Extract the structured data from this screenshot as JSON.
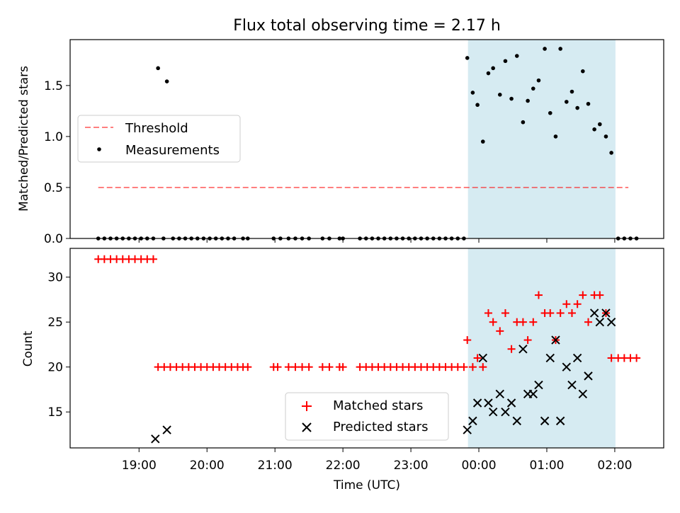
{
  "figure": {
    "title": "Flux total observing time = 2.17 h"
  },
  "chart_data": [
    {
      "type": "scatter",
      "title": "Flux total observing time = 2.17 h",
      "xlabel": "",
      "ylabel": "Matched/Predicted stars",
      "x_unit": "hours (UTC, after midnight > 24)",
      "xlim": [
        17.986,
        26.72
      ],
      "ylim": [
        0,
        1.95
      ],
      "yticks": [
        "0.0",
        "0.5",
        "1.0",
        "1.5"
      ],
      "grid": false,
      "legend_position": "left",
      "shaded_region": {
        "x": [
          23.84,
          26.01
        ],
        "color": "#add8e6"
      },
      "threshold": {
        "name": "Threshold",
        "y": 0.5,
        "x": [
          18.4,
          26.2
        ],
        "color": "#ff0000"
      },
      "series": [
        {
          "name": "Measurements",
          "marker": "dot",
          "color": "#000000",
          "points": [
            [
              18.4,
              0
            ],
            [
              18.49,
              0
            ],
            [
              18.58,
              0
            ],
            [
              18.67,
              0
            ],
            [
              18.76,
              0
            ],
            [
              18.85,
              0
            ],
            [
              18.94,
              0
            ],
            [
              19.03,
              0
            ],
            [
              19.12,
              0
            ],
            [
              19.21,
              0
            ],
            [
              19.28,
              1.67
            ],
            [
              19.41,
              1.54
            ],
            [
              19.36,
              0
            ],
            [
              19.5,
              0
            ],
            [
              19.59,
              0
            ],
            [
              19.68,
              0
            ],
            [
              19.77,
              0
            ],
            [
              19.86,
              0
            ],
            [
              19.95,
              0
            ],
            [
              20.04,
              0
            ],
            [
              20.13,
              0
            ],
            [
              20.22,
              0
            ],
            [
              20.31,
              0
            ],
            [
              20.4,
              0
            ],
            [
              20.53,
              0
            ],
            [
              20.6,
              0
            ],
            [
              20.98,
              0
            ],
            [
              21.08,
              0
            ],
            [
              21.2,
              0
            ],
            [
              21.3,
              0
            ],
            [
              21.4,
              0
            ],
            [
              21.5,
              0
            ],
            [
              21.7,
              0
            ],
            [
              21.8,
              0
            ],
            [
              21.95,
              0
            ],
            [
              22.0,
              0
            ],
            [
              22.25,
              0
            ],
            [
              22.34,
              0
            ],
            [
              22.43,
              0
            ],
            [
              22.52,
              0
            ],
            [
              22.61,
              0
            ],
            [
              22.7,
              0
            ],
            [
              22.79,
              0
            ],
            [
              22.88,
              0
            ],
            [
              22.97,
              0
            ],
            [
              23.06,
              0
            ],
            [
              23.15,
              0
            ],
            [
              23.24,
              0
            ],
            [
              23.33,
              0
            ],
            [
              23.42,
              0
            ],
            [
              23.51,
              0
            ],
            [
              23.6,
              0
            ],
            [
              23.69,
              0
            ],
            [
              23.78,
              0
            ],
            [
              23.83,
              1.77
            ],
            [
              23.91,
              1.43
            ],
            [
              23.98,
              1.31
            ],
            [
              24.06,
              0.95
            ],
            [
              24.14,
              1.62
            ],
            [
              24.21,
              1.67
            ],
            [
              24.31,
              1.41
            ],
            [
              24.39,
              1.74
            ],
            [
              24.48,
              1.37
            ],
            [
              24.56,
              1.79
            ],
            [
              24.65,
              1.14
            ],
            [
              24.72,
              1.35
            ],
            [
              24.8,
              1.47
            ],
            [
              24.88,
              1.55
            ],
            [
              24.97,
              1.86
            ],
            [
              25.05,
              1.23
            ],
            [
              25.13,
              1.0
            ],
            [
              25.2,
              1.86
            ],
            [
              25.29,
              1.34
            ],
            [
              25.37,
              1.44
            ],
            [
              25.45,
              1.28
            ],
            [
              25.53,
              1.64
            ],
            [
              25.61,
              1.32
            ],
            [
              25.7,
              1.07
            ],
            [
              25.78,
              1.12
            ],
            [
              25.87,
              1.0
            ],
            [
              25.95,
              0.84
            ],
            [
              26.05,
              0
            ],
            [
              26.14,
              0
            ],
            [
              26.23,
              0
            ],
            [
              26.32,
              0
            ]
          ]
        }
      ],
      "legend": [
        {
          "label": "Threshold",
          "kind": "dashed-line",
          "color": "#ff0000"
        },
        {
          "label": "Measurements",
          "kind": "dot",
          "color": "#000000"
        }
      ]
    },
    {
      "type": "scatter",
      "title": "",
      "xlabel": "Time (UTC)",
      "ylabel": "Count",
      "x_unit": "hours (UTC, after midnight > 24)",
      "xlim": [
        17.986,
        26.72
      ],
      "ylim": [
        11.0,
        33.2
      ],
      "xticks": [
        {
          "value": 19,
          "label": "19:00"
        },
        {
          "value": 20,
          "label": "20:00"
        },
        {
          "value": 21,
          "label": "21:00"
        },
        {
          "value": 22,
          "label": "22:00"
        },
        {
          "value": 23,
          "label": "23:00"
        },
        {
          "value": 24,
          "label": "00:00"
        },
        {
          "value": 25,
          "label": "01:00"
        },
        {
          "value": 26,
          "label": "02:00"
        }
      ],
      "yticks": [
        "15",
        "20",
        "25",
        "30"
      ],
      "grid": false,
      "legend_position": "bottom-center",
      "shaded_region": {
        "x": [
          23.84,
          26.01
        ],
        "color": "#add8e6"
      },
      "series": [
        {
          "name": "Matched stars",
          "marker": "plus",
          "color": "#ff0000",
          "points": [
            [
              18.4,
              32
            ],
            [
              18.49,
              32
            ],
            [
              18.58,
              32
            ],
            [
              18.67,
              32
            ],
            [
              18.76,
              32
            ],
            [
              18.85,
              32
            ],
            [
              18.94,
              32
            ],
            [
              19.03,
              32
            ],
            [
              19.12,
              32
            ],
            [
              19.21,
              32
            ],
            [
              19.28,
              20
            ],
            [
              19.37,
              20
            ],
            [
              19.46,
              20
            ],
            [
              19.55,
              20
            ],
            [
              19.64,
              20
            ],
            [
              19.73,
              20
            ],
            [
              19.82,
              20
            ],
            [
              19.91,
              20
            ],
            [
              20.0,
              20
            ],
            [
              20.09,
              20
            ],
            [
              20.18,
              20
            ],
            [
              20.27,
              20
            ],
            [
              20.36,
              20
            ],
            [
              20.45,
              20
            ],
            [
              20.53,
              20
            ],
            [
              20.6,
              20
            ],
            [
              20.98,
              20
            ],
            [
              21.04,
              20
            ],
            [
              21.2,
              20
            ],
            [
              21.3,
              20
            ],
            [
              21.4,
              20
            ],
            [
              21.5,
              20
            ],
            [
              21.7,
              20
            ],
            [
              21.8,
              20
            ],
            [
              21.95,
              20
            ],
            [
              22.0,
              20
            ],
            [
              22.25,
              20
            ],
            [
              22.34,
              20
            ],
            [
              22.43,
              20
            ],
            [
              22.52,
              20
            ],
            [
              22.61,
              20
            ],
            [
              22.7,
              20
            ],
            [
              22.79,
              20
            ],
            [
              22.88,
              20
            ],
            [
              22.97,
              20
            ],
            [
              23.06,
              20
            ],
            [
              23.15,
              20
            ],
            [
              23.24,
              20
            ],
            [
              23.33,
              20
            ],
            [
              23.42,
              20
            ],
            [
              23.51,
              20
            ],
            [
              23.6,
              20
            ],
            [
              23.69,
              20
            ],
            [
              23.78,
              20
            ],
            [
              23.83,
              23
            ],
            [
              23.91,
              20
            ],
            [
              23.98,
              21
            ],
            [
              24.06,
              20
            ],
            [
              24.14,
              26
            ],
            [
              24.21,
              25
            ],
            [
              24.31,
              24
            ],
            [
              24.39,
              26
            ],
            [
              24.48,
              22
            ],
            [
              24.56,
              25
            ],
            [
              24.65,
              25
            ],
            [
              24.72,
              23
            ],
            [
              24.8,
              25
            ],
            [
              24.88,
              28
            ],
            [
              24.97,
              26
            ],
            [
              25.05,
              26
            ],
            [
              25.13,
              23
            ],
            [
              25.2,
              26
            ],
            [
              25.29,
              27
            ],
            [
              25.37,
              26
            ],
            [
              25.45,
              27
            ],
            [
              25.53,
              28
            ],
            [
              25.61,
              25
            ],
            [
              25.7,
              28
            ],
            [
              25.78,
              28
            ],
            [
              25.87,
              26
            ],
            [
              25.95,
              21
            ],
            [
              26.05,
              21
            ],
            [
              26.14,
              21
            ],
            [
              26.23,
              21
            ],
            [
              26.32,
              21
            ]
          ]
        },
        {
          "name": "Predicted stars",
          "marker": "x",
          "color": "#000000",
          "points": [
            [
              19.24,
              12
            ],
            [
              19.41,
              13
            ],
            [
              23.83,
              13
            ],
            [
              23.91,
              14
            ],
            [
              23.98,
              16
            ],
            [
              24.06,
              21
            ],
            [
              24.14,
              16
            ],
            [
              24.21,
              15
            ],
            [
              24.31,
              17
            ],
            [
              24.39,
              15
            ],
            [
              24.48,
              16
            ],
            [
              24.56,
              14
            ],
            [
              24.65,
              22
            ],
            [
              24.72,
              17
            ],
            [
              24.8,
              17
            ],
            [
              24.88,
              18
            ],
            [
              24.97,
              14
            ],
            [
              25.05,
              21
            ],
            [
              25.13,
              23
            ],
            [
              25.2,
              14
            ],
            [
              25.29,
              20
            ],
            [
              25.37,
              18
            ],
            [
              25.45,
              21
            ],
            [
              25.53,
              17
            ],
            [
              25.61,
              19
            ],
            [
              25.7,
              26
            ],
            [
              25.78,
              25
            ],
            [
              25.87,
              26
            ],
            [
              25.95,
              25
            ]
          ]
        }
      ],
      "legend": [
        {
          "label": "Matched stars",
          "kind": "plus",
          "color": "#ff0000"
        },
        {
          "label": "Predicted stars",
          "kind": "x",
          "color": "#000000"
        }
      ]
    }
  ]
}
